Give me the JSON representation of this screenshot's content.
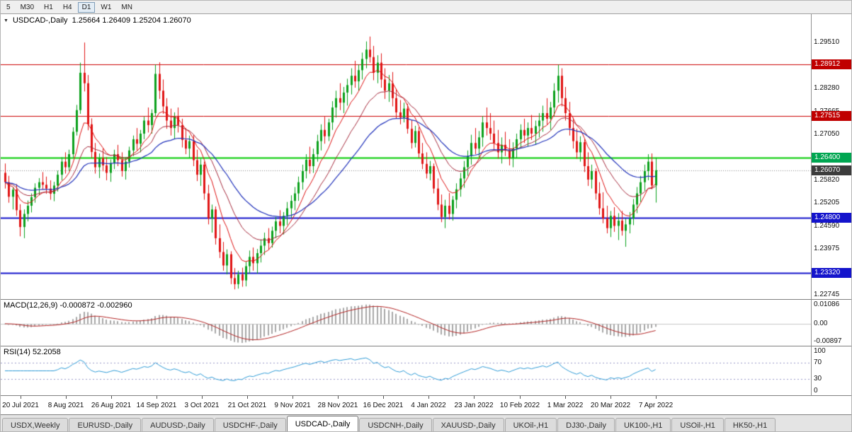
{
  "toolbar": {
    "timeframes": [
      "5",
      "M30",
      "H1",
      "H4",
      "D1",
      "W1",
      "MN"
    ],
    "active": "D1"
  },
  "main_panel": {
    "title_symbol": "USDCAD-,Daily",
    "ohlc_text": "1.25664 1.26409 1.25204 1.26070",
    "badges": [
      {
        "price": 1.28912,
        "label": "1.28912",
        "bg": "#c00000"
      },
      {
        "price": 1.27515,
        "label": "1.27515",
        "bg": "#c00000"
      },
      {
        "price": 1.264,
        "label": "1.26400",
        "bg": "#00a651"
      },
      {
        "price": 1.2607,
        "label": "1.26070",
        "bg": "#3c3c3c"
      },
      {
        "price": 1.248,
        "label": "1.24800",
        "bg": "#1414cc"
      },
      {
        "price": 1.2332,
        "label": "1.23320",
        "bg": "#1414cc"
      }
    ]
  },
  "macd_panel": {
    "label": "MACD(12,26,9) -0.000872 -0.002960",
    "axis_top": "0.01086",
    "axis_zero": "0.00",
    "axis_bottom": "-0.00897"
  },
  "rsi_panel": {
    "label": "RSI(14) 52.2058",
    "axis_top": "100",
    "axis_upper": "70",
    "axis_lower": "30",
    "axis_bottom": "0"
  },
  "tabs": {
    "items": [
      "USDX,Weekly",
      "EURUSD-,Daily",
      "AUDUSD-,Daily",
      "USDCHF-,Daily",
      "USDCAD-,Daily",
      "USDCNH-,Daily",
      "XAUUSD-,Daily",
      "UKOil-,H1",
      "DJ30-,Daily",
      "UK100-,H1",
      "USOil-,H1",
      "HK50-,H1"
    ],
    "active_index": 4
  },
  "colors": {
    "up": "#0ba11c",
    "down": "#e01414",
    "ma_fast": "#dd1111",
    "ma_mid": "#a52a3c",
    "ma_slow": "#2233bb",
    "macd_hist": "#a8a8a8",
    "macd_signal": "#b22222",
    "rsi_line": "#2e9bd6"
  },
  "chart_data": {
    "type": "candlestick",
    "symbol": "USDCAD-",
    "timeframe": "Daily",
    "current_bar_ohlc": [
      1.25664,
      1.26409,
      1.25204,
      1.2607
    ],
    "current_price": 1.2607,
    "y_tick_labels": [
      "1.29510",
      "1.28895",
      "1.28280",
      "1.27665",
      "1.27050",
      "1.26435",
      "1.25820",
      "1.25205",
      "1.24590",
      "1.23975",
      "1.23360",
      "1.22745"
    ],
    "x_tick_labels": [
      "20 Jul 2021",
      "8 Aug 2021",
      "26 Aug 2021",
      "14 Sep 2021",
      "3 Oct 2021",
      "21 Oct 2021",
      "9 Nov 2021",
      "28 Nov 2021",
      "16 Dec 2021",
      "4 Jan 2022",
      "23 Jan 2022",
      "10 Feb 2022",
      "1 Mar 2022",
      "20 Mar 2022",
      "7 Apr 2022"
    ],
    "hlines": [
      {
        "price": 1.28912,
        "color": "#cc0000",
        "width": 1
      },
      {
        "price": 1.27515,
        "color": "#cc0000",
        "width": 1
      },
      {
        "price": 1.264,
        "color": "#00cc00",
        "width": 2
      },
      {
        "price": 1.248,
        "color": "#1414cc",
        "width": 2
      },
      {
        "price": 1.2332,
        "color": "#1414cc",
        "width": 2
      }
    ],
    "indicators": [
      {
        "name": "MACD",
        "params": [
          12,
          26,
          9
        ],
        "current_values": [
          -0.000872,
          -0.00296
        ]
      },
      {
        "name": "RSI",
        "params": [
          14
        ],
        "current_value": 52.2058,
        "levels": [
          70,
          30
        ]
      }
    ],
    "main_scale": {
      "top": 1.3025,
      "bottom": 1.2262
    },
    "macd_scale": {
      "max": 0.01086,
      "min": -0.00897
    },
    "right_gap": 215,
    "ohlc": [
      [
        1.26,
        1.2625,
        1.2558,
        1.2575
      ],
      [
        1.2575,
        1.2592,
        1.252,
        1.2536
      ],
      [
        1.2536,
        1.2562,
        1.2502,
        1.2555
      ],
      [
        1.2555,
        1.257,
        1.2485,
        1.25
      ],
      [
        1.25,
        1.2516,
        1.243,
        1.2455
      ],
      [
        1.2455,
        1.2502,
        1.2425,
        1.249
      ],
      [
        1.249,
        1.2526,
        1.247,
        1.2512
      ],
      [
        1.2512,
        1.2545,
        1.2494,
        1.2535
      ],
      [
        1.2535,
        1.2572,
        1.252,
        1.256
      ],
      [
        1.256,
        1.2586,
        1.254,
        1.2575
      ],
      [
        1.2575,
        1.2602,
        1.2555,
        1.2568
      ],
      [
        1.2568,
        1.259,
        1.2544,
        1.2558
      ],
      [
        1.2558,
        1.258,
        1.2528,
        1.2544
      ],
      [
        1.2544,
        1.2576,
        1.2524,
        1.2566
      ],
      [
        1.2566,
        1.2606,
        1.255,
        1.2595
      ],
      [
        1.2595,
        1.2642,
        1.258,
        1.263
      ],
      [
        1.263,
        1.2655,
        1.2598,
        1.2615
      ],
      [
        1.2615,
        1.2662,
        1.2605,
        1.265
      ],
      [
        1.265,
        1.2722,
        1.264,
        1.271
      ],
      [
        1.271,
        1.2782,
        1.27,
        1.2768
      ],
      [
        1.2768,
        1.2895,
        1.2758,
        1.2868
      ],
      [
        1.2868,
        1.2949,
        1.2818,
        1.284
      ],
      [
        1.284,
        1.2862,
        1.2714,
        1.273
      ],
      [
        1.273,
        1.2746,
        1.264,
        1.2656
      ],
      [
        1.2656,
        1.268,
        1.2598,
        1.2615
      ],
      [
        1.2615,
        1.2652,
        1.2586,
        1.264
      ],
      [
        1.264,
        1.2665,
        1.2604,
        1.262
      ],
      [
        1.262,
        1.2642,
        1.258,
        1.26
      ],
      [
        1.26,
        1.2636,
        1.2576,
        1.2626
      ],
      [
        1.2626,
        1.2662,
        1.261,
        1.265
      ],
      [
        1.265,
        1.2675,
        1.2618,
        1.2634
      ],
      [
        1.2634,
        1.2655,
        1.259,
        1.2605
      ],
      [
        1.2605,
        1.2642,
        1.2582,
        1.263
      ],
      [
        1.263,
        1.267,
        1.2614,
        1.266
      ],
      [
        1.266,
        1.27,
        1.2645,
        1.269
      ],
      [
        1.269,
        1.272,
        1.266,
        1.2678
      ],
      [
        1.2678,
        1.2715,
        1.2655,
        1.2705
      ],
      [
        1.2705,
        1.275,
        1.269,
        1.274
      ],
      [
        1.274,
        1.2775,
        1.2708,
        1.2728
      ],
      [
        1.2728,
        1.277,
        1.2705,
        1.276
      ],
      [
        1.276,
        1.289,
        1.275,
        1.2865
      ],
      [
        1.2865,
        1.2896,
        1.2798,
        1.282
      ],
      [
        1.282,
        1.285,
        1.2758,
        1.2778
      ],
      [
        1.2778,
        1.28,
        1.2718,
        1.274
      ],
      [
        1.274,
        1.2772,
        1.27,
        1.272
      ],
      [
        1.272,
        1.2762,
        1.269,
        1.275
      ],
      [
        1.275,
        1.2775,
        1.2708,
        1.2728
      ],
      [
        1.2728,
        1.2745,
        1.2668,
        1.2688
      ],
      [
        1.2688,
        1.272,
        1.265,
        1.2665
      ],
      [
        1.2665,
        1.27,
        1.264,
        1.2685
      ],
      [
        1.2685,
        1.2702,
        1.2618,
        1.2634
      ],
      [
        1.2634,
        1.2662,
        1.2578,
        1.2595
      ],
      [
        1.2595,
        1.2638,
        1.2565,
        1.2622
      ],
      [
        1.2622,
        1.263,
        1.2528,
        1.2545
      ],
      [
        1.2545,
        1.2568,
        1.2462,
        1.2478
      ],
      [
        1.2478,
        1.2515,
        1.244,
        1.2502
      ],
      [
        1.2502,
        1.251,
        1.2408,
        1.2425
      ],
      [
        1.2425,
        1.2462,
        1.2372,
        1.2388
      ],
      [
        1.2388,
        1.2415,
        1.2338,
        1.2352
      ],
      [
        1.2352,
        1.2395,
        1.2328,
        1.2382
      ],
      [
        1.2382,
        1.239,
        1.2302,
        1.2318
      ],
      [
        1.2318,
        1.2345,
        1.2288,
        1.2302
      ],
      [
        1.2302,
        1.2338,
        1.229,
        1.2328
      ],
      [
        1.2328,
        1.2346,
        1.2295,
        1.2312
      ],
      [
        1.2312,
        1.2362,
        1.2296,
        1.235
      ],
      [
        1.235,
        1.2392,
        1.233,
        1.2375
      ],
      [
        1.2375,
        1.24,
        1.2338,
        1.2358
      ],
      [
        1.2358,
        1.2396,
        1.233,
        1.2385
      ],
      [
        1.2385,
        1.2422,
        1.236,
        1.2405
      ],
      [
        1.2405,
        1.244,
        1.238,
        1.2425
      ],
      [
        1.2425,
        1.2452,
        1.2394,
        1.2412
      ],
      [
        1.2412,
        1.2456,
        1.24,
        1.2445
      ],
      [
        1.2445,
        1.2482,
        1.2425,
        1.247
      ],
      [
        1.247,
        1.25,
        1.2438,
        1.2458
      ],
      [
        1.2458,
        1.2495,
        1.2435,
        1.2485
      ],
      [
        1.2485,
        1.2522,
        1.246,
        1.2505
      ],
      [
        1.2505,
        1.254,
        1.248,
        1.2525
      ],
      [
        1.2525,
        1.2562,
        1.25,
        1.2545
      ],
      [
        1.2545,
        1.259,
        1.2525,
        1.2575
      ],
      [
        1.2575,
        1.2622,
        1.2555,
        1.2605
      ],
      [
        1.2605,
        1.265,
        1.2585,
        1.2635
      ],
      [
        1.2635,
        1.267,
        1.2598,
        1.2618
      ],
      [
        1.2618,
        1.2665,
        1.26,
        1.265
      ],
      [
        1.265,
        1.2702,
        1.263,
        1.2685
      ],
      [
        1.2685,
        1.273,
        1.266,
        1.2715
      ],
      [
        1.2715,
        1.275,
        1.2678,
        1.2698
      ],
      [
        1.2698,
        1.2745,
        1.2685,
        1.2735
      ],
      [
        1.2735,
        1.2792,
        1.2715,
        1.2775
      ],
      [
        1.2775,
        1.282,
        1.2748,
        1.28
      ],
      [
        1.28,
        1.284,
        1.2768,
        1.2788
      ],
      [
        1.2788,
        1.283,
        1.276,
        1.2815
      ],
      [
        1.2815,
        1.2852,
        1.278,
        1.2835
      ],
      [
        1.2835,
        1.288,
        1.281,
        1.286
      ],
      [
        1.286,
        1.29,
        1.2828,
        1.2845
      ],
      [
        1.2845,
        1.289,
        1.282,
        1.2875
      ],
      [
        1.2875,
        1.2922,
        1.285,
        1.2905
      ],
      [
        1.2905,
        1.2952,
        1.288,
        1.293
      ],
      [
        1.293,
        1.2965,
        1.2895,
        1.291
      ],
      [
        1.291,
        1.294,
        1.2848,
        1.2868
      ],
      [
        1.2868,
        1.2915,
        1.284,
        1.2895
      ],
      [
        1.2895,
        1.292,
        1.2828,
        1.285
      ],
      [
        1.285,
        1.288,
        1.2798,
        1.282
      ],
      [
        1.282,
        1.2862,
        1.279,
        1.284
      ],
      [
        1.284,
        1.287,
        1.2778,
        1.28
      ],
      [
        1.28,
        1.2825,
        1.2745,
        1.2762
      ],
      [
        1.2762,
        1.2795,
        1.273,
        1.2748
      ],
      [
        1.2748,
        1.2788,
        1.2735,
        1.2772
      ],
      [
        1.2772,
        1.2785,
        1.2705,
        1.2718
      ],
      [
        1.2718,
        1.2742,
        1.2665,
        1.268
      ],
      [
        1.268,
        1.2726,
        1.2668,
        1.2712
      ],
      [
        1.2712,
        1.2722,
        1.264,
        1.2652
      ],
      [
        1.2652,
        1.268,
        1.261,
        1.2624
      ],
      [
        1.2624,
        1.2655,
        1.2585,
        1.2598
      ],
      [
        1.2598,
        1.2632,
        1.258,
        1.2618
      ],
      [
        1.2618,
        1.2625,
        1.2545,
        1.2558
      ],
      [
        1.2558,
        1.2585,
        1.25,
        1.2515
      ],
      [
        1.2515,
        1.2542,
        1.2468,
        1.2482
      ],
      [
        1.2482,
        1.2528,
        1.2452,
        1.2512
      ],
      [
        1.2512,
        1.2546,
        1.2475,
        1.249
      ],
      [
        1.249,
        1.2538,
        1.2472,
        1.2528
      ],
      [
        1.2528,
        1.2572,
        1.2505,
        1.2556
      ],
      [
        1.2556,
        1.26,
        1.2536,
        1.2585
      ],
      [
        1.2585,
        1.2632,
        1.256,
        1.2615
      ],
      [
        1.2615,
        1.266,
        1.2592,
        1.2645
      ],
      [
        1.2645,
        1.2702,
        1.2622,
        1.268
      ],
      [
        1.268,
        1.272,
        1.265,
        1.2665
      ],
      [
        1.2665,
        1.2712,
        1.2642,
        1.2695
      ],
      [
        1.2695,
        1.2752,
        1.267,
        1.2735
      ],
      [
        1.2735,
        1.2775,
        1.27,
        1.272
      ],
      [
        1.272,
        1.276,
        1.2688,
        1.2705
      ],
      [
        1.2705,
        1.274,
        1.266,
        1.268
      ],
      [
        1.268,
        1.2715,
        1.2638,
        1.2655
      ],
      [
        1.2655,
        1.2695,
        1.2625,
        1.2675
      ],
      [
        1.2675,
        1.271,
        1.2645,
        1.266
      ],
      [
        1.266,
        1.269,
        1.262,
        1.264
      ],
      [
        1.264,
        1.2682,
        1.2615,
        1.2665
      ],
      [
        1.2665,
        1.2705,
        1.264,
        1.269
      ],
      [
        1.269,
        1.273,
        1.2665,
        1.2715
      ],
      [
        1.2715,
        1.2745,
        1.268,
        1.27
      ],
      [
        1.27,
        1.2735,
        1.267,
        1.272
      ],
      [
        1.272,
        1.2755,
        1.2688,
        1.2705
      ],
      [
        1.2705,
        1.274,
        1.2675,
        1.2725
      ],
      [
        1.2725,
        1.276,
        1.2695,
        1.274
      ],
      [
        1.274,
        1.278,
        1.271,
        1.276
      ],
      [
        1.276,
        1.28,
        1.2728,
        1.2745
      ],
      [
        1.2745,
        1.279,
        1.2715,
        1.2775
      ],
      [
        1.2775,
        1.284,
        1.275,
        1.282
      ],
      [
        1.282,
        1.289,
        1.2788,
        1.286
      ],
      [
        1.286,
        1.288,
        1.2778,
        1.28
      ],
      [
        1.28,
        1.283,
        1.274,
        1.276
      ],
      [
        1.276,
        1.279,
        1.27,
        1.272
      ],
      [
        1.272,
        1.2748,
        1.2665,
        1.2685
      ],
      [
        1.2685,
        1.2718,
        1.2638,
        1.2655
      ],
      [
        1.2655,
        1.2698,
        1.263,
        1.2682
      ],
      [
        1.2682,
        1.269,
        1.2602,
        1.2618
      ],
      [
        1.2618,
        1.2655,
        1.2565,
        1.2582
      ],
      [
        1.2582,
        1.2622,
        1.2558,
        1.2605
      ],
      [
        1.2605,
        1.2612,
        1.2528,
        1.2545
      ],
      [
        1.2545,
        1.2575,
        1.2488,
        1.2505
      ],
      [
        1.2505,
        1.2548,
        1.2465,
        1.2478
      ],
      [
        1.2478,
        1.2512,
        1.2438,
        1.2452
      ],
      [
        1.2452,
        1.2498,
        1.2428,
        1.2485
      ],
      [
        1.2485,
        1.2508,
        1.2442,
        1.2458
      ],
      [
        1.2458,
        1.2492,
        1.242,
        1.2472
      ],
      [
        1.2472,
        1.2498,
        1.2432,
        1.2445
      ],
      [
        1.2445,
        1.2478,
        1.2402,
        1.2462
      ],
      [
        1.2462,
        1.2495,
        1.2438,
        1.2478
      ],
      [
        1.2478,
        1.253,
        1.246,
        1.2515
      ],
      [
        1.2515,
        1.2562,
        1.2492,
        1.2545
      ],
      [
        1.2545,
        1.2592,
        1.2522,
        1.2575
      ],
      [
        1.2575,
        1.2622,
        1.2552,
        1.2605
      ],
      [
        1.2605,
        1.265,
        1.258,
        1.263
      ],
      [
        1.263,
        1.2652,
        1.2556,
        1.2566
      ],
      [
        1.25664,
        1.26409,
        1.25204,
        1.2607
      ]
    ]
  }
}
